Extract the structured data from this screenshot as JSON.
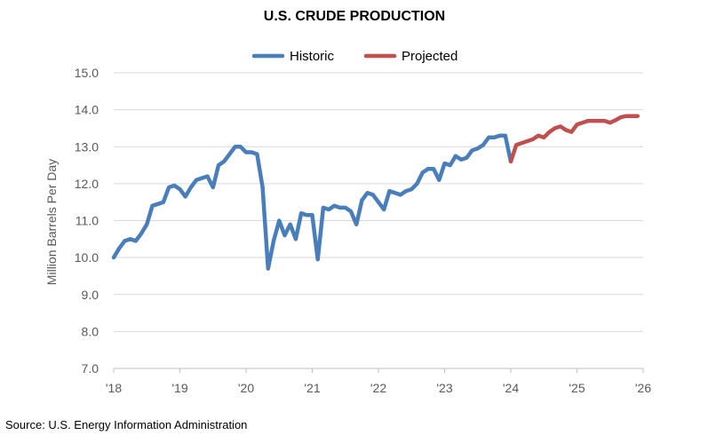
{
  "chart_data": {
    "type": "line",
    "title": "U.S. CRUDE PRODUCTION",
    "ylabel": "Million Barrels Per Day",
    "xlabel": "",
    "ylim": [
      7.0,
      15.0
    ],
    "yticks": [
      "7.0",
      "8.0",
      "9.0",
      "10.0",
      "11.0",
      "12.0",
      "13.0",
      "14.0",
      "15.0"
    ],
    "xticks": [
      {
        "label": "'18",
        "date": "2018-01"
      },
      {
        "label": "'19",
        "date": "2019-01"
      },
      {
        "label": "'20",
        "date": "2020-01"
      },
      {
        "label": "'21",
        "date": "2021-01"
      },
      {
        "label": "'22",
        "date": "2022-01"
      },
      {
        "label": "'23",
        "date": "2023-01"
      },
      {
        "label": "'24",
        "date": "2024-01"
      },
      {
        "label": "'25",
        "date": "2025-01"
      },
      {
        "label": "'26",
        "date": "2026-01"
      }
    ],
    "grid": true,
    "legend_position": "top",
    "series": [
      {
        "name": "Historic",
        "color": "#4a7ebb",
        "points": [
          [
            "2018-01",
            10.0
          ],
          [
            "2018-02",
            10.25
          ],
          [
            "2018-03",
            10.45
          ],
          [
            "2018-04",
            10.5
          ],
          [
            "2018-05",
            10.45
          ],
          [
            "2018-06",
            10.65
          ],
          [
            "2018-07",
            10.9
          ],
          [
            "2018-08",
            11.4
          ],
          [
            "2018-09",
            11.45
          ],
          [
            "2018-10",
            11.5
          ],
          [
            "2018-11",
            11.9
          ],
          [
            "2018-12",
            11.95
          ],
          [
            "2019-01",
            11.85
          ],
          [
            "2019-02",
            11.65
          ],
          [
            "2019-03",
            11.9
          ],
          [
            "2019-04",
            12.1
          ],
          [
            "2019-05",
            12.15
          ],
          [
            "2019-06",
            12.2
          ],
          [
            "2019-07",
            11.9
          ],
          [
            "2019-08",
            12.5
          ],
          [
            "2019-09",
            12.6
          ],
          [
            "2019-10",
            12.8
          ],
          [
            "2019-11",
            13.0
          ],
          [
            "2019-12",
            13.0
          ],
          [
            "2020-01",
            12.85
          ],
          [
            "2020-02",
            12.85
          ],
          [
            "2020-03",
            12.8
          ],
          [
            "2020-04",
            11.9
          ],
          [
            "2020-05",
            9.7
          ],
          [
            "2020-06",
            10.45
          ],
          [
            "2020-07",
            11.0
          ],
          [
            "2020-08",
            10.6
          ],
          [
            "2020-09",
            10.9
          ],
          [
            "2020-10",
            10.5
          ],
          [
            "2020-11",
            11.2
          ],
          [
            "2020-12",
            11.15
          ],
          [
            "2021-01",
            11.15
          ],
          [
            "2021-02",
            9.95
          ],
          [
            "2021-03",
            11.35
          ],
          [
            "2021-04",
            11.3
          ],
          [
            "2021-05",
            11.4
          ],
          [
            "2021-06",
            11.35
          ],
          [
            "2021-07",
            11.35
          ],
          [
            "2021-08",
            11.25
          ],
          [
            "2021-09",
            10.9
          ],
          [
            "2021-10",
            11.55
          ],
          [
            "2021-11",
            11.75
          ],
          [
            "2021-12",
            11.7
          ],
          [
            "2022-01",
            11.5
          ],
          [
            "2022-02",
            11.3
          ],
          [
            "2022-03",
            11.8
          ],
          [
            "2022-04",
            11.75
          ],
          [
            "2022-05",
            11.7
          ],
          [
            "2022-06",
            11.8
          ],
          [
            "2022-07",
            11.85
          ],
          [
            "2022-08",
            12.0
          ],
          [
            "2022-09",
            12.3
          ],
          [
            "2022-10",
            12.4
          ],
          [
            "2022-11",
            12.4
          ],
          [
            "2022-12",
            12.1
          ],
          [
            "2023-01",
            12.55
          ],
          [
            "2023-02",
            12.5
          ],
          [
            "2023-03",
            12.75
          ],
          [
            "2023-04",
            12.65
          ],
          [
            "2023-05",
            12.7
          ],
          [
            "2023-06",
            12.9
          ],
          [
            "2023-07",
            12.95
          ],
          [
            "2023-08",
            13.05
          ],
          [
            "2023-09",
            13.25
          ],
          [
            "2023-10",
            13.25
          ],
          [
            "2023-11",
            13.3
          ],
          [
            "2023-12",
            13.3
          ],
          [
            "2024-01",
            12.6
          ]
        ]
      },
      {
        "name": "Projected",
        "color": "#c0504d",
        "points": [
          [
            "2024-01",
            12.6
          ],
          [
            "2024-02",
            13.05
          ],
          [
            "2024-03",
            13.1
          ],
          [
            "2024-04",
            13.15
          ],
          [
            "2024-05",
            13.2
          ],
          [
            "2024-06",
            13.3
          ],
          [
            "2024-07",
            13.25
          ],
          [
            "2024-08",
            13.4
          ],
          [
            "2024-09",
            13.5
          ],
          [
            "2024-10",
            13.55
          ],
          [
            "2024-11",
            13.45
          ],
          [
            "2024-12",
            13.4
          ],
          [
            "2025-01",
            13.6
          ],
          [
            "2025-02",
            13.65
          ],
          [
            "2025-03",
            13.7
          ],
          [
            "2025-04",
            13.7
          ],
          [
            "2025-05",
            13.7
          ],
          [
            "2025-06",
            13.7
          ],
          [
            "2025-07",
            13.65
          ],
          [
            "2025-08",
            13.72
          ],
          [
            "2025-09",
            13.8
          ],
          [
            "2025-10",
            13.83
          ],
          [
            "2025-11",
            13.83
          ],
          [
            "2025-12",
            13.83
          ]
        ]
      }
    ],
    "source": "Source: U.S. Energy Information Administration"
  }
}
